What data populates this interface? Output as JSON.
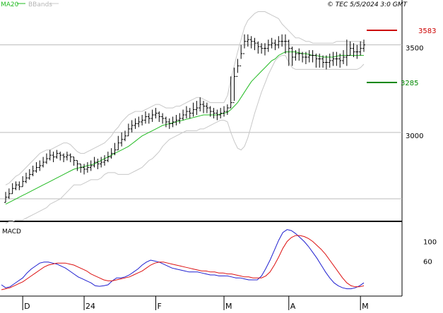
{
  "header": {
    "legend_ma": "MA20",
    "legend_bb": "BBands",
    "timestamp": "© TEC 5/5/2024 3:0 GMT"
  },
  "colors": {
    "background": "#ffffff",
    "bars": "#000000",
    "ma20": "#22bb22",
    "bbands": "#c8c8c8",
    "resistance": "#cc0000",
    "support": "#008800",
    "macd_line": "#1f1fd0",
    "macd_signal": "#dd1111",
    "grid": "#bbbbbb",
    "legend_inactive": "#b5b5b5"
  },
  "chart_data": [
    {
      "type": "ohlc",
      "name": "price-panel",
      "ylim": [
        2500,
        3700
      ],
      "y_ticks": [
        {
          "value": 3500,
          "label": "3500"
        },
        {
          "value": 3000,
          "label": "3000"
        }
      ],
      "levels": [
        {
          "name": "resistance",
          "value": 3583,
          "label": "3583",
          "color": "#cc0000"
        },
        {
          "name": "support",
          "value": 3285,
          "label": "3285",
          "color": "#008800"
        }
      ],
      "x_labels": [
        {
          "index": 5,
          "label": "D"
        },
        {
          "index": 23,
          "label": "24"
        },
        {
          "index": 44,
          "label": "F"
        },
        {
          "index": 64,
          "label": "M"
        },
        {
          "index": 83,
          "label": "A"
        },
        {
          "index": 104,
          "label": "M"
        }
      ],
      "close": [
        2630,
        2650,
        2680,
        2700,
        2690,
        2720,
        2740,
        2760,
        2780,
        2800,
        2810,
        2830,
        2850,
        2870,
        2860,
        2880,
        2870,
        2860,
        2870,
        2860,
        2840,
        2820,
        2800,
        2790,
        2800,
        2810,
        2830,
        2820,
        2830,
        2840,
        2860,
        2880,
        2900,
        2940,
        2960,
        2980,
        3020,
        3040,
        3050,
        3060,
        3070,
        3090,
        3080,
        3100,
        3110,
        3090,
        3080,
        3060,
        3050,
        3060,
        3070,
        3080,
        3100,
        3120,
        3110,
        3130,
        3140,
        3160,
        3150,
        3140,
        3120,
        3110,
        3100,
        3110,
        3120,
        3140,
        3170,
        3320,
        3380,
        3450,
        3520,
        3530,
        3520,
        3510,
        3490,
        3480,
        3480,
        3500,
        3510,
        3500,
        3520,
        3520,
        3520,
        3480,
        3430,
        3450,
        3450,
        3430,
        3430,
        3440,
        3440,
        3420,
        3420,
        3400,
        3400,
        3410,
        3420,
        3420,
        3410,
        3430,
        3440,
        3480,
        3460,
        3460,
        3480,
        3500
      ],
      "high": [
        2660,
        2680,
        2710,
        2720,
        2720,
        2750,
        2770,
        2790,
        2810,
        2830,
        2840,
        2860,
        2880,
        2900,
        2890,
        2900,
        2890,
        2880,
        2890,
        2880,
        2860,
        2840,
        2820,
        2820,
        2830,
        2840,
        2860,
        2850,
        2860,
        2870,
        2890,
        2910,
        2940,
        2980,
        3000,
        3010,
        3050,
        3070,
        3080,
        3090,
        3100,
        3120,
        3110,
        3130,
        3140,
        3120,
        3110,
        3090,
        3080,
        3090,
        3100,
        3110,
        3130,
        3150,
        3140,
        3170,
        3180,
        3200,
        3180,
        3170,
        3150,
        3140,
        3130,
        3140,
        3150,
        3160,
        3320,
        3370,
        3420,
        3500,
        3560,
        3560,
        3550,
        3540,
        3520,
        3510,
        3510,
        3530,
        3540,
        3530,
        3550,
        3560,
        3560,
        3530,
        3490,
        3470,
        3480,
        3460,
        3460,
        3470,
        3470,
        3450,
        3450,
        3440,
        3440,
        3450,
        3460,
        3460,
        3450,
        3470,
        3530,
        3520,
        3510,
        3500,
        3520,
        3530
      ],
      "low": [
        2600,
        2620,
        2650,
        2670,
        2670,
        2690,
        2710,
        2730,
        2750,
        2770,
        2780,
        2800,
        2820,
        2840,
        2830,
        2850,
        2840,
        2830,
        2840,
        2830,
        2810,
        2780,
        2770,
        2760,
        2770,
        2780,
        2800,
        2790,
        2800,
        2810,
        2830,
        2850,
        2870,
        2900,
        2920,
        2950,
        2980,
        3000,
        3020,
        3030,
        3040,
        3050,
        3050,
        3060,
        3080,
        3060,
        3050,
        3030,
        3020,
        3030,
        3040,
        3050,
        3070,
        3080,
        3080,
        3090,
        3100,
        3120,
        3110,
        3110,
        3090,
        3080,
        3070,
        3080,
        3090,
        3100,
        3140,
        3180,
        3340,
        3420,
        3480,
        3490,
        3480,
        3470,
        3450,
        3450,
        3440,
        3460,
        3480,
        3470,
        3480,
        3490,
        3450,
        3380,
        3380,
        3410,
        3410,
        3400,
        3390,
        3400,
        3400,
        3370,
        3370,
        3370,
        3360,
        3370,
        3380,
        3380,
        3370,
        3390,
        3380,
        3440,
        3430,
        3420,
        3440,
        3460
      ],
      "ma20": [
        2590,
        2600,
        2610,
        2620,
        2630,
        2640,
        2650,
        2660,
        2670,
        2680,
        2690,
        2700,
        2710,
        2720,
        2730,
        2740,
        2750,
        2760,
        2770,
        2780,
        2790,
        2795,
        2800,
        2805,
        2810,
        2815,
        2820,
        2830,
        2840,
        2850,
        2860,
        2870,
        2880,
        2890,
        2900,
        2910,
        2920,
        2935,
        2950,
        2965,
        2980,
        2990,
        3000,
        3010,
        3020,
        3030,
        3040,
        3045,
        3050,
        3055,
        3060,
        3065,
        3070,
        3075,
        3080,
        3085,
        3090,
        3095,
        3100,
        3100,
        3100,
        3100,
        3100,
        3105,
        3110,
        3115,
        3130,
        3150,
        3170,
        3200,
        3230,
        3260,
        3290,
        3310,
        3330,
        3350,
        3370,
        3390,
        3410,
        3420,
        3440,
        3450,
        3460,
        3460,
        3460,
        3460,
        3455,
        3450,
        3450,
        3445,
        3440,
        3440,
        3435,
        3430,
        3430,
        3430,
        3430,
        3435,
        3440,
        3440,
        3440,
        3440,
        3440,
        3440,
        3440,
        3440
      ],
      "bb_upper": [
        2700,
        2710,
        2730,
        2750,
        2760,
        2780,
        2800,
        2820,
        2840,
        2860,
        2880,
        2890,
        2900,
        2900,
        2910,
        2920,
        2930,
        2940,
        2940,
        2930,
        2910,
        2890,
        2880,
        2880,
        2890,
        2900,
        2910,
        2920,
        2930,
        2940,
        2960,
        2980,
        3010,
        3030,
        3060,
        3080,
        3100,
        3110,
        3120,
        3120,
        3120,
        3130,
        3140,
        3150,
        3160,
        3160,
        3150,
        3140,
        3140,
        3140,
        3150,
        3150,
        3160,
        3170,
        3180,
        3190,
        3200,
        3200,
        3190,
        3180,
        3170,
        3170,
        3170,
        3170,
        3170,
        3210,
        3300,
        3380,
        3460,
        3530,
        3600,
        3640,
        3660,
        3680,
        3690,
        3690,
        3690,
        3680,
        3670,
        3660,
        3650,
        3620,
        3600,
        3580,
        3560,
        3540,
        3540,
        3530,
        3520,
        3520,
        3510,
        3510,
        3510,
        3510,
        3510,
        3510,
        3510,
        3520,
        3520,
        3520,
        3520,
        3520,
        3520,
        3520,
        3520,
        3510
      ],
      "bb_lower": [
        2480,
        2490,
        2490,
        2500,
        2500,
        2500,
        2510,
        2520,
        2530,
        2540,
        2550,
        2560,
        2570,
        2590,
        2600,
        2610,
        2620,
        2640,
        2660,
        2680,
        2700,
        2700,
        2700,
        2710,
        2720,
        2730,
        2730,
        2730,
        2740,
        2760,
        2770,
        2770,
        2770,
        2760,
        2760,
        2760,
        2760,
        2770,
        2780,
        2790,
        2800,
        2820,
        2840,
        2850,
        2870,
        2890,
        2920,
        2940,
        2960,
        2970,
        2980,
        2990,
        3000,
        3010,
        3010,
        3010,
        3010,
        3020,
        3020,
        3030,
        3040,
        3050,
        3060,
        3070,
        3070,
        3060,
        3000,
        2950,
        2910,
        2900,
        2920,
        2970,
        3040,
        3110,
        3170,
        3230,
        3280,
        3330,
        3370,
        3410,
        3430,
        3440,
        3440,
        3400,
        3370,
        3360,
        3360,
        3360,
        3360,
        3360,
        3360,
        3360,
        3360,
        3360,
        3360,
        3360,
        3360,
        3360,
        3360,
        3360,
        3360,
        3360,
        3360,
        3360,
        3370,
        3390
      ]
    },
    {
      "type": "line",
      "name": "macd-panel",
      "title": "MACD",
      "ylim": [
        -8,
        135
      ],
      "y_ticks": [
        {
          "value": 100,
          "label": "100"
        },
        {
          "value": 60,
          "label": "60"
        }
      ],
      "series": [
        {
          "name": "macd",
          "color": "#1f1fd0",
          "values": [
            12,
            6,
            8,
            14,
            20,
            26,
            36,
            44,
            50,
            56,
            58,
            58,
            56,
            54,
            50,
            46,
            40,
            34,
            28,
            24,
            20,
            16,
            10,
            9,
            10,
            12,
            20,
            26,
            26,
            28,
            32,
            38,
            44,
            52,
            58,
            62,
            60,
            58,
            54,
            50,
            46,
            44,
            42,
            40,
            38,
            38,
            38,
            36,
            34,
            32,
            32,
            30,
            30,
            30,
            28,
            26,
            26,
            24,
            22,
            22,
            22,
            30,
            45,
            62,
            82,
            102,
            118,
            124,
            122,
            116,
            108,
            100,
            90,
            78,
            66,
            52,
            38,
            26,
            16,
            10,
            6,
            4,
            4,
            6,
            10,
            16
          ]
        },
        {
          "name": "signal",
          "color": "#dd1111",
          "values": [
            2,
            4,
            6,
            10,
            14,
            18,
            24,
            30,
            36,
            42,
            48,
            52,
            54,
            56,
            56,
            56,
            54,
            52,
            48,
            44,
            40,
            34,
            30,
            26,
            22,
            20,
            20,
            22,
            24,
            26,
            28,
            32,
            36,
            40,
            46,
            52,
            56,
            58,
            58,
            56,
            54,
            52,
            50,
            48,
            46,
            44,
            42,
            40,
            40,
            38,
            38,
            36,
            36,
            34,
            34,
            32,
            30,
            28,
            28,
            26,
            26,
            26,
            30,
            38,
            52,
            68,
            86,
            100,
            108,
            112,
            112,
            110,
            106,
            100,
            92,
            84,
            74,
            62,
            50,
            38,
            26,
            16,
            10,
            8,
            8,
            10
          ]
        }
      ]
    }
  ]
}
